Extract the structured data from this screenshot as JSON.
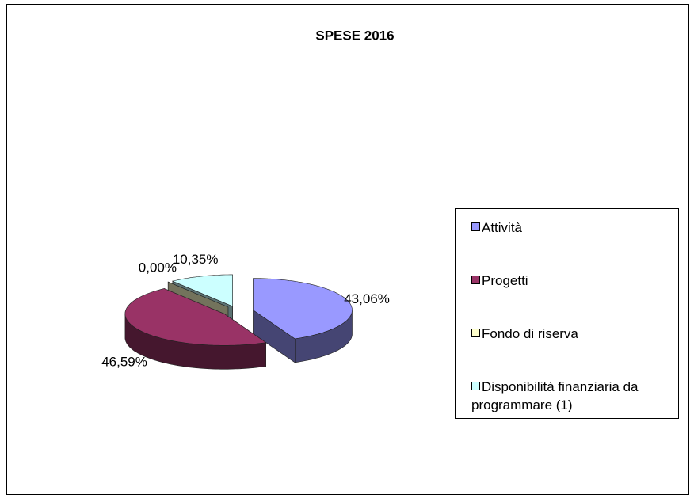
{
  "chart_data": {
    "type": "pie3d",
    "title": "SPESE 2016",
    "categories": [
      "Attività",
      "Progetti",
      "Fondo di riserva",
      "Disponibilità finanziaria da programmare (1)"
    ],
    "values": [
      43.06,
      46.59,
      0.0,
      10.35
    ],
    "value_labels": [
      "43,06%",
      "46,59%",
      "0,00%",
      "10,35%"
    ],
    "colors": [
      "#9999ff",
      "#993366",
      "#ffffcc",
      "#ccffff"
    ],
    "legend": "right"
  }
}
